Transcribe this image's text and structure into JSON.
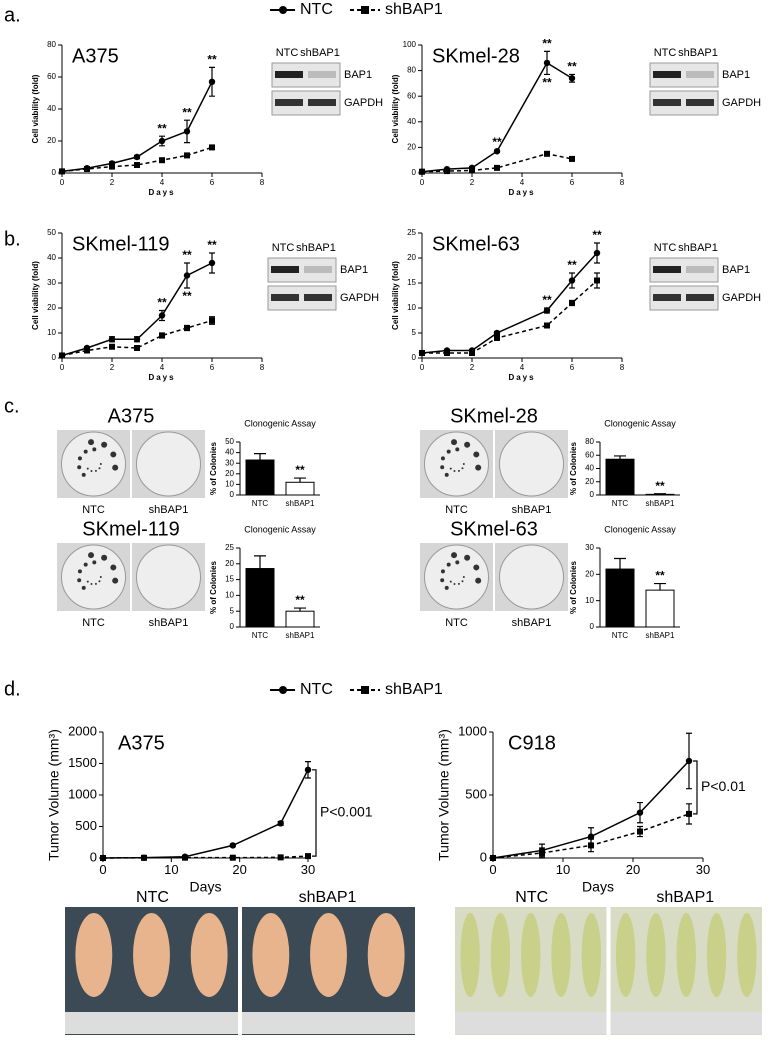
{
  "panel_labels": [
    "a.",
    "b.",
    "c.",
    "d."
  ],
  "blots": [
    {
      "headers": [
        "NTC",
        "shBAP1"
      ],
      "bands": [
        "BAP1",
        "GAPDH"
      ]
    },
    {
      "headers": [
        "NTC",
        "shBAP1"
      ],
      "bands": [
        "BAP1",
        "GAPDH"
      ]
    },
    {
      "headers": [
        "NTC",
        "shBAP1"
      ],
      "bands": [
        "BAP1",
        "GAPDH"
      ]
    },
    {
      "headers": [
        "NTC",
        "shBAP1"
      ],
      "bands": [
        "BAP1",
        "GAPDH"
      ]
    }
  ],
  "tumor_photos": [
    {
      "labels": [
        "NTC",
        "shBAP1"
      ]
    },
    {
      "labels": [
        "NTC",
        "shBAP1"
      ]
    }
  ],
  "chart_data": [
    {
      "type": "line",
      "cell_line": "A375",
      "x_label": "Days",
      "y_label": "Cell viability (fold)",
      "x": [
        0,
        1,
        2,
        3,
        4,
        5,
        6
      ],
      "xlim": [
        0,
        8
      ],
      "xticks": [
        0,
        2,
        4,
        6,
        8
      ],
      "ylim": [
        0,
        80
      ],
      "yticks": [
        0,
        20,
        40,
        60,
        80
      ],
      "series": [
        {
          "name": "NTC",
          "color": "#000000",
          "marker": "circle",
          "linestyle": "solid",
          "values": [
            1,
            3,
            6,
            10,
            20,
            26,
            57
          ],
          "errors": [
            0.5,
            0.5,
            1,
            1,
            3,
            7,
            9
          ]
        },
        {
          "name": "shBAP1",
          "color": "#000000",
          "marker": "square",
          "linestyle": "dashed",
          "values": [
            1,
            2.5,
            4,
            5,
            8,
            11,
            16
          ],
          "errors": [
            0.3,
            0.3,
            0.5,
            0.5,
            1,
            1,
            1
          ]
        }
      ],
      "annotations": [
        {
          "text": "**",
          "x": 4
        },
        {
          "text": "**",
          "x": 5
        },
        {
          "text": "**",
          "x": 6
        }
      ]
    },
    {
      "type": "line",
      "cell_line": "SKmel-28",
      "x_label": "Days",
      "y_label": "Cell viability (fold)",
      "x": [
        0,
        1,
        2,
        3,
        5,
        6
      ],
      "xlim": [
        0,
        8
      ],
      "xticks": [
        0,
        2,
        4,
        6,
        8
      ],
      "ylim": [
        0,
        100
      ],
      "yticks": [
        0,
        20,
        40,
        60,
        80,
        100
      ],
      "series": [
        {
          "name": "NTC",
          "color": "#000000",
          "marker": "circle",
          "linestyle": "solid",
          "values": [
            1,
            3,
            4,
            17,
            86,
            74
          ],
          "errors": [
            0.5,
            0.5,
            1,
            1,
            9,
            3
          ]
        },
        {
          "name": "shBAP1",
          "color": "#000000",
          "marker": "square",
          "linestyle": "dashed",
          "values": [
            1,
            1.5,
            2,
            4,
            15,
            11
          ],
          "errors": [
            0.3,
            0.3,
            0.5,
            0.5,
            1.5,
            1
          ]
        }
      ],
      "annotations": [
        {
          "text": "**",
          "x": 3
        },
        {
          "text": "**",
          "x": 5
        },
        {
          "text": "**",
          "x": 5
        },
        {
          "text": "**",
          "x": 6
        }
      ]
    },
    {
      "type": "line",
      "cell_line": "SKmel-119",
      "x_label": "Days",
      "y_label": "Cell viability (fold)",
      "x": [
        0,
        1,
        2,
        3,
        4,
        5,
        6
      ],
      "xlim": [
        0,
        8
      ],
      "xticks": [
        0,
        2,
        4,
        6,
        8
      ],
      "ylim": [
        0,
        50
      ],
      "yticks": [
        0,
        10,
        20,
        30,
        40,
        50
      ],
      "series": [
        {
          "name": "NTC",
          "color": "#000000",
          "marker": "circle",
          "linestyle": "solid",
          "values": [
            1,
            4,
            7.5,
            7.5,
            17,
            33,
            38
          ],
          "errors": [
            0.3,
            0.5,
            1,
            1,
            2,
            5,
            4
          ]
        },
        {
          "name": "shBAP1",
          "color": "#000000",
          "marker": "square",
          "linestyle": "dashed",
          "values": [
            1,
            3,
            4.5,
            4,
            9,
            12,
            15
          ],
          "errors": [
            0.3,
            0.5,
            0.5,
            0.5,
            1,
            1,
            1.5
          ]
        }
      ],
      "annotations": [
        {
          "text": "**",
          "x": 4
        },
        {
          "text": "**",
          "x": 5
        },
        {
          "text": "**",
          "x": 5
        },
        {
          "text": "**",
          "x": 6
        }
      ]
    },
    {
      "type": "line",
      "cell_line": "SKmel-63",
      "x_label": "Days",
      "y_label": "Cell viability (fold)",
      "x": [
        0,
        1,
        2,
        3,
        5,
        6,
        7
      ],
      "xlim": [
        0,
        8
      ],
      "xticks": [
        0,
        2,
        4,
        6,
        8
      ],
      "ylim": [
        0,
        25
      ],
      "yticks": [
        0,
        5,
        10,
        15,
        20,
        25
      ],
      "series": [
        {
          "name": "NTC",
          "color": "#000000",
          "marker": "circle",
          "linestyle": "solid",
          "values": [
            1,
            1.5,
            1.5,
            5,
            9.5,
            15.5,
            21
          ],
          "errors": [
            0.2,
            0.2,
            0.2,
            0.3,
            0.5,
            1.5,
            2
          ]
        },
        {
          "name": "shBAP1",
          "color": "#000000",
          "marker": "square",
          "linestyle": "dashed",
          "values": [
            1,
            1,
            1,
            4,
            6.5,
            11,
            15.5
          ],
          "errors": [
            0.2,
            0.2,
            0.2,
            0.3,
            0.4,
            0.5,
            1.5
          ]
        }
      ],
      "annotations": [
        {
          "text": "**",
          "x": 5
        },
        {
          "text": "**",
          "x": 6
        },
        {
          "text": "**",
          "x": 7
        }
      ]
    },
    {
      "type": "bar",
      "cell_line": "A375",
      "title": "Clonogenic Assay",
      "y_label": "% of Colonies",
      "image_labels": [
        "NTC",
        "shBAP1"
      ],
      "categories": [
        "NTC",
        "shBAP1"
      ],
      "values": [
        33,
        12
      ],
      "errors": [
        6,
        4
      ],
      "colors": [
        "#000000",
        "#ffffff"
      ],
      "ylim": [
        0,
        50
      ],
      "yticks": [
        0,
        10,
        20,
        30,
        40,
        50
      ],
      "annotations": [
        "**"
      ]
    },
    {
      "type": "bar",
      "cell_line": "SKmel-28",
      "title": "Clonogenic Assay",
      "y_label": "% of Colonies",
      "image_labels": [
        "NTC",
        "shBAP1"
      ],
      "categories": [
        "NTC",
        "shBAP1"
      ],
      "values": [
        54,
        1
      ],
      "errors": [
        5,
        1
      ],
      "colors": [
        "#000000",
        "#ffffff"
      ],
      "ylim": [
        0,
        80
      ],
      "yticks": [
        0,
        20,
        40,
        60,
        80
      ],
      "annotations": [
        "**"
      ]
    },
    {
      "type": "bar",
      "cell_line": "SKmel-119",
      "title": "Clonogenic Assay",
      "y_label": "% of Colonies",
      "image_labels": [
        "NTC",
        "shBAP1"
      ],
      "categories": [
        "NTC",
        "shBAP1"
      ],
      "values": [
        18.5,
        5
      ],
      "errors": [
        4,
        1
      ],
      "colors": [
        "#000000",
        "#ffffff"
      ],
      "ylim": [
        0,
        25
      ],
      "yticks": [
        0,
        5,
        10,
        15,
        20,
        25
      ],
      "annotations": [
        "**"
      ]
    },
    {
      "type": "bar",
      "cell_line": "SKmel-63",
      "title": "Clonogenic Assay",
      "y_label": "% of Colonies",
      "image_labels": [
        "NTC",
        "shBAP1"
      ],
      "categories": [
        "NTC",
        "shBAP1"
      ],
      "values": [
        22,
        14
      ],
      "errors": [
        4,
        2.5
      ],
      "colors": [
        "#000000",
        "#ffffff"
      ],
      "ylim": [
        0,
        30
      ],
      "yticks": [
        0,
        10,
        20,
        30
      ],
      "annotations": [
        "**"
      ]
    },
    {
      "type": "line",
      "cell_line": "A375",
      "x_label": "Days",
      "y_label": "Tumor Volume (mm³)",
      "x": [
        0,
        6,
        12,
        19,
        26,
        30
      ],
      "xlim": [
        0,
        30
      ],
      "xticks": [
        0,
        10,
        20,
        30
      ],
      "ylim": [
        0,
        2000
      ],
      "yticks": [
        0,
        500,
        1000,
        1500,
        2000
      ],
      "series": [
        {
          "name": "NTC",
          "color": "#000000",
          "marker": "circle",
          "linestyle": "solid",
          "values": [
            0,
            5,
            20,
            200,
            550,
            1400
          ],
          "errors": [
            0,
            0,
            10,
            20,
            30,
            130
          ]
        },
        {
          "name": "shBAP1",
          "color": "#000000",
          "marker": "square",
          "linestyle": "dashed",
          "values": [
            0,
            3,
            5,
            5,
            10,
            30
          ],
          "errors": [
            0,
            0,
            2,
            2,
            5,
            20
          ]
        }
      ],
      "annotations": [
        {
          "text": "P<0.001"
        }
      ]
    },
    {
      "type": "line",
      "cell_line": "C918",
      "x_label": "Days",
      "y_label": "Tumor Volume (mm³)",
      "x": [
        0,
        7,
        14,
        21,
        28
      ],
      "xlim": [
        0,
        30
      ],
      "xticks": [
        0,
        10,
        20,
        30
      ],
      "ylim": [
        0,
        1000
      ],
      "yticks": [
        0,
        500,
        1000
      ],
      "series": [
        {
          "name": "NTC",
          "color": "#000000",
          "marker": "circle",
          "linestyle": "solid",
          "values": [
            0,
            60,
            170,
            360,
            770
          ],
          "errors": [
            0,
            50,
            70,
            80,
            220
          ]
        },
        {
          "name": "shBAP1",
          "color": "#000000",
          "marker": "square",
          "linestyle": "dashed",
          "values": [
            0,
            40,
            100,
            210,
            350
          ],
          "errors": [
            0,
            40,
            50,
            40,
            80
          ]
        }
      ],
      "annotations": [
        {
          "text": "P<0.01"
        }
      ]
    }
  ]
}
